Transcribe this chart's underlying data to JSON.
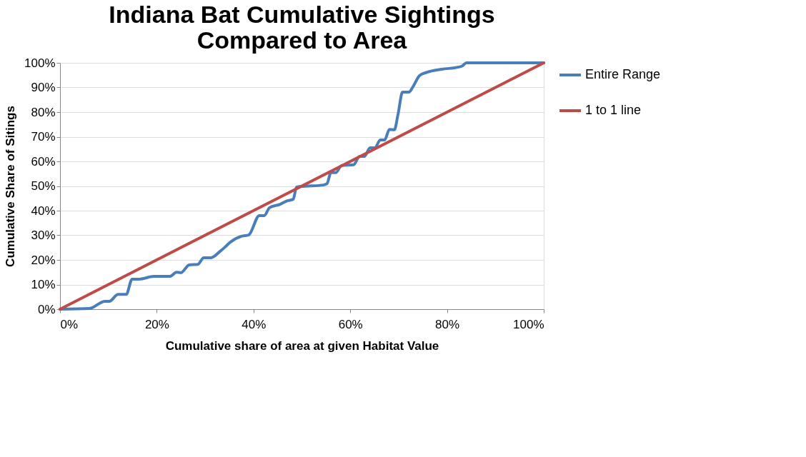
{
  "chart_data": {
    "type": "line",
    "title": "Indiana Bat Cumulative Sightings Compared to Area",
    "xlabel": "Cumulative share of area at given Habitat Value",
    "ylabel": "Cumulative Share of Sitings",
    "series": [
      {
        "name": "Entire Range",
        "color": "#4a7ebb",
        "x": [
          0,
          6.1,
          9.3,
          10.2,
          12,
          13.7,
          14.9,
          16.4,
          19.4,
          22.7,
          24.1,
          25,
          26.7,
          28.5,
          29.7,
          31.2,
          33.1,
          34.1,
          35.2,
          37.5,
          39,
          41.2,
          42.2,
          43.3,
          45.5,
          47,
          48.2,
          48.9,
          50.8,
          54.4,
          55.2,
          56,
          57,
          58.2,
          60.7,
          61.9,
          62.9,
          64.1,
          65.1,
          66.2,
          67.1,
          68.1,
          69.1,
          69.9,
          70.8,
          72.1,
          73,
          74.3,
          75.9,
          78.9,
          82.4,
          83.2,
          84,
          100
        ],
        "values": [
          0,
          0.3,
          3.2,
          3.2,
          6,
          6,
          12.2,
          12.2,
          13.3,
          13.3,
          15,
          14.8,
          18,
          18.2,
          20.9,
          20.9,
          23.5,
          25.2,
          27.2,
          29.6,
          30.1,
          38,
          38,
          41.2,
          42.6,
          44,
          44.6,
          49.6,
          49.9,
          50.4,
          51,
          55.4,
          55.4,
          58.3,
          58.6,
          62,
          62,
          65.5,
          65.5,
          68.7,
          68.7,
          73,
          72.8,
          79.4,
          88.1,
          88.1,
          90.4,
          94.8,
          96.2,
          97.4,
          98.3,
          98.8,
          100,
          100
        ]
      },
      {
        "name": "1 to 1 line",
        "color": "#be4b48",
        "x": [
          0,
          100
        ],
        "values": [
          0,
          100
        ]
      }
    ],
    "xlim": [
      0,
      100
    ],
    "ylim": [
      0,
      100
    ],
    "xticks": [
      {
        "value": 0,
        "label": "0%"
      },
      {
        "value": 20,
        "label": "20%"
      },
      {
        "value": 40,
        "label": "40%"
      },
      {
        "value": 60,
        "label": "60%"
      },
      {
        "value": 80,
        "label": "80%"
      },
      {
        "value": 100,
        "label": "100%"
      }
    ],
    "yticks": [
      {
        "value": 0,
        "label": "0%"
      },
      {
        "value": 10,
        "label": "10%"
      },
      {
        "value": 20,
        "label": "20%"
      },
      {
        "value": 30,
        "label": "30%"
      },
      {
        "value": 40,
        "label": "40%"
      },
      {
        "value": 50,
        "label": "50%"
      },
      {
        "value": 60,
        "label": "60%"
      },
      {
        "value": 70,
        "label": "70%"
      },
      {
        "value": 80,
        "label": "80%"
      },
      {
        "value": 90,
        "label": "90%"
      },
      {
        "value": 100,
        "label": "100%"
      }
    ],
    "grid": "y",
    "legend": "right",
    "marker": "none",
    "line_style": "solid"
  }
}
